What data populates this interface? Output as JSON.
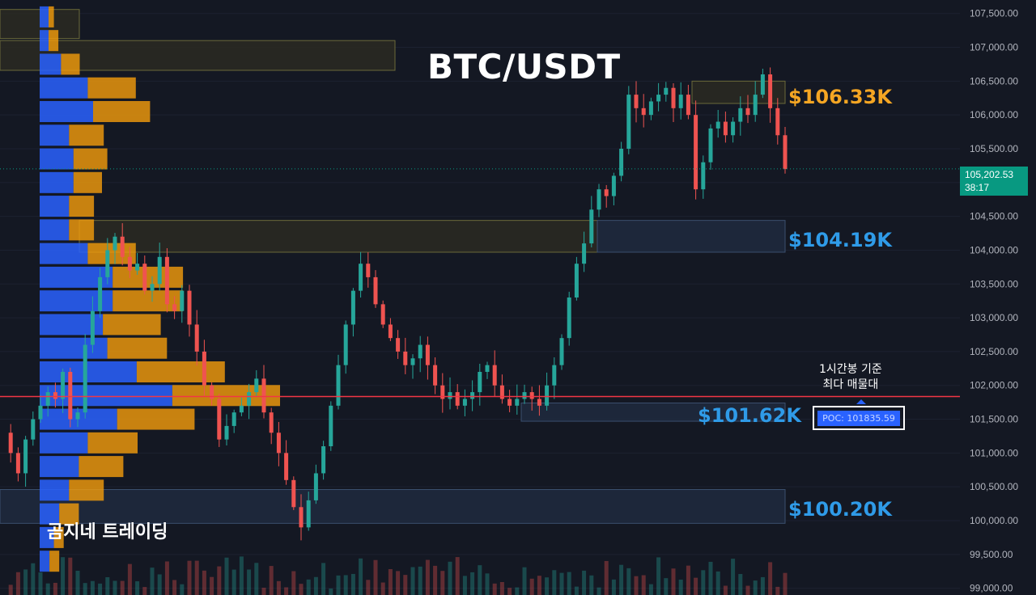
{
  "title": "BTC/USDT",
  "watermark": "곰지네 트레이딩",
  "levels": [
    {
      "id": "lvl-106",
      "label": "$106.33K",
      "price": 106330,
      "color": "#f5a623"
    },
    {
      "id": "lvl-104",
      "label": "$104.19K",
      "price": 104190,
      "color": "#2f9be8"
    },
    {
      "id": "lvl-101",
      "label": "$101.62K",
      "price": 101620,
      "color": "#2f9be8"
    },
    {
      "id": "lvl-100",
      "label": "$100.20K",
      "price": 100200,
      "color": "#2f9be8"
    }
  ],
  "poc": {
    "note_line1": "1시간봉 기준",
    "note_line2": "최다 매물대",
    "label": "POC: 101835.59",
    "price": 101835.59
  },
  "last_price": {
    "value": "105,202.53",
    "countdown": "38:17"
  },
  "colors": {
    "background": "#141823",
    "up": "#26a69a",
    "down": "#ef5350",
    "poc_line": "#f23645",
    "vp_buy": "#2962ff",
    "vp_sell": "#f59e0b"
  },
  "chart_data": {
    "type": "candlestick",
    "title": "BTC/USDT",
    "y_axis": {
      "ylim": [
        98900,
        107700
      ],
      "ticks": [
        {
          "value": 99000,
          "label": "99,000.00"
        },
        {
          "value": 99500,
          "label": "99,500.00"
        },
        {
          "value": 100000,
          "label": "100,000.00"
        },
        {
          "value": 100500,
          "label": "100,500.00"
        },
        {
          "value": 101000,
          "label": "101,000.00"
        },
        {
          "value": 101500,
          "label": "101,500.00"
        },
        {
          "value": 102000,
          "label": "102,000.00"
        },
        {
          "value": 102500,
          "label": "102,500.00"
        },
        {
          "value": 103000,
          "label": "103,000.00"
        },
        {
          "value": 103500,
          "label": "103,500.00"
        },
        {
          "value": 104000,
          "label": "104,000.00"
        },
        {
          "value": 104500,
          "label": "104,500.00"
        },
        {
          "value": 105000,
          "label": "105,000.00"
        },
        {
          "value": 105500,
          "label": "105,500.00"
        },
        {
          "value": 106000,
          "label": "106,000.00"
        },
        {
          "value": 106500,
          "label": "106,500.00"
        },
        {
          "value": 107000,
          "label": "107,000.00"
        },
        {
          "value": 107500,
          "label": "107,500.00"
        }
      ]
    },
    "candle_path": [
      101300,
      101000,
      100700,
      101200,
      101500,
      101700,
      101900,
      101800,
      102200,
      101500,
      101600,
      102600,
      103100,
      103600,
      104000,
      104200,
      103900,
      103700,
      103800,
      103400,
      103500,
      103900,
      103200,
      103100,
      103400,
      102900,
      102500,
      102000,
      101800,
      101200,
      101400,
      101600,
      101700,
      101900,
      102100,
      101600,
      101300,
      101000,
      100600,
      100200,
      99900,
      100300,
      100700,
      101100,
      101700,
      102300,
      102900,
      103400,
      103800,
      103600,
      103200,
      102900,
      102700,
      102500,
      102300,
      102400,
      102600,
      102300,
      102000,
      101800,
      101900,
      101700,
      101800,
      101900,
      102200,
      102300,
      102000,
      101800,
      101700,
      101800,
      101900,
      101800,
      101700,
      102000,
      102300,
      102700,
      103300,
      103800,
      104100,
      104600,
      104900,
      104800,
      105100,
      105500,
      106300,
      106100,
      106000,
      106200,
      106300,
      106400,
      106100,
      106300,
      106000,
      104900,
      105300,
      105800,
      105900,
      105700,
      105900,
      106100,
      106000,
      106300,
      106600,
      106100,
      105700,
      105200
    ],
    "volume_profile": [
      {
        "price": 107450,
        "buy": 1.0,
        "sell": 0.6
      },
      {
        "price": 107100,
        "buy": 1.0,
        "sell": 1.1
      },
      {
        "price": 106750,
        "buy": 2.4,
        "sell": 2.1
      },
      {
        "price": 106400,
        "buy": 5.4,
        "sell": 5.4
      },
      {
        "price": 106050,
        "buy": 6.0,
        "sell": 6.4
      },
      {
        "price": 105700,
        "buy": 3.3,
        "sell": 3.9
      },
      {
        "price": 105350,
        "buy": 3.8,
        "sell": 3.8
      },
      {
        "price": 105000,
        "buy": 3.8,
        "sell": 3.2
      },
      {
        "price": 104650,
        "buy": 3.3,
        "sell": 2.8
      },
      {
        "price": 104300,
        "buy": 3.3,
        "sell": 2.8
      },
      {
        "price": 103950,
        "buy": 5.4,
        "sell": 5.4
      },
      {
        "price": 103600,
        "buy": 8.2,
        "sell": 7.9
      },
      {
        "price": 103250,
        "buy": 8.2,
        "sell": 7.9
      },
      {
        "price": 102900,
        "buy": 7.1,
        "sell": 6.5
      },
      {
        "price": 102550,
        "buy": 7.6,
        "sell": 6.7
      },
      {
        "price": 102200,
        "buy": 10.9,
        "sell": 9.9
      },
      {
        "price": 101850,
        "buy": 14.9,
        "sell": 12.1
      },
      {
        "price": 101500,
        "buy": 8.7,
        "sell": 8.7
      },
      {
        "price": 101150,
        "buy": 5.4,
        "sell": 5.6
      },
      {
        "price": 100800,
        "buy": 4.4,
        "sell": 5.0
      },
      {
        "price": 100450,
        "buy": 3.3,
        "sell": 3.9
      },
      {
        "price": 100100,
        "buy": 2.2,
        "sell": 2.2
      },
      {
        "price": 99750,
        "buy": 1.6,
        "sell": 1.1
      },
      {
        "price": 99400,
        "buy": 1.1,
        "sell": 1.1
      }
    ]
  }
}
